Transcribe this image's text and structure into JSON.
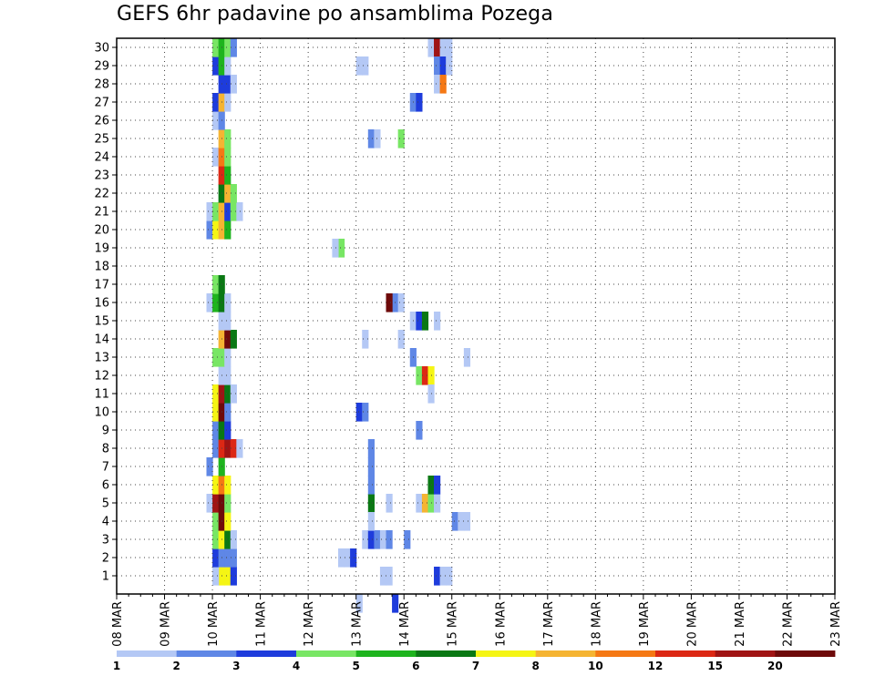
{
  "chart_data": {
    "type": "heatmap",
    "title": "GEFS 6hr padavine po ansamblima Pozega",
    "xlabel": "",
    "ylabel": "",
    "x_ticks": [
      "08 MAR",
      "09 MAR",
      "10 MAR",
      "11 MAR",
      "12 MAR",
      "13 MAR",
      "14 MAR",
      "15 MAR",
      "16 MAR",
      "17 MAR",
      "18 MAR",
      "19 MAR",
      "20 MAR",
      "21 MAR",
      "22 MAR",
      "23 MAR"
    ],
    "y_ticks": [
      "1",
      "2",
      "3",
      "4",
      "5",
      "6",
      "7",
      "8",
      "9",
      "10",
      "11",
      "12",
      "13",
      "14",
      "15",
      "16",
      "17",
      "18",
      "19",
      "20",
      "21",
      "22",
      "23",
      "24",
      "25",
      "26",
      "27",
      "28",
      "29",
      "30"
    ],
    "x_range": [
      0,
      60
    ],
    "y_range": [
      0,
      30.5
    ],
    "grid": true,
    "colorbar": {
      "levels": [
        "1",
        "2",
        "3",
        "4",
        "5",
        "6",
        "7",
        "8",
        "10",
        "12",
        "15",
        "20"
      ],
      "colors": [
        "#b4c8f5",
        "#5f87e6",
        "#1e3cdc",
        "#78e664",
        "#1eb41e",
        "#0a7814",
        "#f5f514",
        "#f5b432",
        "#f57814",
        "#dc2814",
        "#a01414",
        "#6e0a0a"
      ],
      "placement": "bottom"
    },
    "cells": [
      [
        8.5,
        1,
        6
      ],
      [
        9,
        1,
        6
      ],
      [
        8,
        1,
        0
      ],
      [
        9.5,
        1,
        2
      ],
      [
        8,
        2,
        2
      ],
      [
        8.5,
        2,
        1
      ],
      [
        9,
        2,
        1
      ],
      [
        9.5,
        2,
        1
      ],
      [
        19,
        2,
        0
      ],
      [
        19.5,
        2,
        2
      ],
      [
        8,
        3,
        3
      ],
      [
        8.5,
        3,
        6
      ],
      [
        9,
        3,
        5
      ],
      [
        9.5,
        3,
        0
      ],
      [
        8,
        4,
        3
      ],
      [
        8.5,
        4,
        11
      ],
      [
        9,
        4,
        6
      ],
      [
        7.5,
        5,
        0
      ],
      [
        8,
        5,
        10
      ],
      [
        8.5,
        5,
        11
      ],
      [
        9,
        5,
        3
      ],
      [
        8,
        6,
        6
      ],
      [
        8.5,
        6,
        8
      ],
      [
        9,
        6,
        6
      ],
      [
        7.5,
        7,
        1
      ],
      [
        8.5,
        7,
        4
      ],
      [
        8,
        8,
        1
      ],
      [
        8.5,
        8,
        9
      ],
      [
        9,
        8,
        10
      ],
      [
        9.5,
        8,
        9
      ],
      [
        10,
        8,
        0
      ],
      [
        8,
        9,
        1
      ],
      [
        8.5,
        9,
        5
      ],
      [
        9,
        9,
        2
      ],
      [
        8,
        10,
        6
      ],
      [
        8.5,
        10,
        11
      ],
      [
        9,
        10,
        1
      ],
      [
        8,
        11,
        6
      ],
      [
        8.5,
        11,
        10
      ],
      [
        9,
        11,
        5
      ],
      [
        9.5,
        11,
        0
      ],
      [
        8.5,
        12,
        0
      ],
      [
        9,
        12,
        0
      ],
      [
        8,
        13,
        3
      ],
      [
        8.5,
        13,
        3
      ],
      [
        9,
        13,
        0
      ],
      [
        8.5,
        14,
        7
      ],
      [
        9,
        14,
        11
      ],
      [
        9.5,
        14,
        5
      ],
      [
        8.5,
        15,
        0
      ],
      [
        9,
        15,
        0
      ],
      [
        7.5,
        16,
        0
      ],
      [
        8,
        16,
        4
      ],
      [
        8.5,
        16,
        5
      ],
      [
        9,
        16,
        0
      ],
      [
        8,
        17,
        3
      ],
      [
        8.5,
        17,
        5
      ],
      [
        7.5,
        20,
        1
      ],
      [
        8,
        20,
        6
      ],
      [
        8.5,
        20,
        7
      ],
      [
        9,
        20,
        4
      ],
      [
        7.5,
        21,
        0
      ],
      [
        8,
        21,
        3
      ],
      [
        8.5,
        21,
        7
      ],
      [
        9,
        21,
        2
      ],
      [
        9.5,
        21,
        3
      ],
      [
        10,
        21,
        0
      ],
      [
        8.5,
        22,
        5
      ],
      [
        9,
        22,
        7
      ],
      [
        9.5,
        22,
        3
      ],
      [
        8.5,
        23,
        9
      ],
      [
        9,
        23,
        4
      ],
      [
        8,
        24,
        0
      ],
      [
        8.5,
        24,
        8
      ],
      [
        9,
        24,
        3
      ],
      [
        8.5,
        25,
        7
      ],
      [
        9,
        25,
        3
      ],
      [
        8,
        26,
        0
      ],
      [
        8.5,
        26,
        1
      ],
      [
        8,
        27,
        2
      ],
      [
        8.5,
        27,
        7
      ],
      [
        9,
        27,
        0
      ],
      [
        8.5,
        28,
        2
      ],
      [
        9,
        28,
        2
      ],
      [
        9.5,
        28,
        0
      ],
      [
        8,
        29,
        2
      ],
      [
        8.5,
        29,
        4
      ],
      [
        9,
        29,
        0
      ],
      [
        8,
        30,
        3
      ],
      [
        8.5,
        30,
        4
      ],
      [
        9,
        30,
        3
      ],
      [
        9.5,
        30,
        1
      ],
      [
        18.5,
        19,
        3
      ],
      [
        20.5,
        3,
        0
      ],
      [
        21,
        3,
        2
      ],
      [
        21.5,
        3,
        1
      ],
      [
        22,
        3,
        0
      ],
      [
        22.5,
        3,
        1
      ],
      [
        24,
        3,
        1
      ],
      [
        21,
        5,
        5
      ],
      [
        22.5,
        5,
        0
      ],
      [
        25,
        5,
        0
      ],
      [
        25.5,
        5,
        7
      ],
      [
        26,
        5,
        3
      ],
      [
        26.5,
        5,
        0
      ],
      [
        21,
        4,
        0
      ],
      [
        21,
        8,
        1
      ],
      [
        21,
        6,
        1
      ],
      [
        21,
        7,
        1
      ],
      [
        20,
        10,
        2
      ],
      [
        20.5,
        10,
        1
      ],
      [
        20,
        -0.5,
        0
      ],
      [
        20.5,
        14,
        0
      ],
      [
        23,
        16,
        1
      ],
      [
        23.5,
        16,
        0
      ],
      [
        22.5,
        16,
        11
      ],
      [
        23.5,
        14,
        0
      ],
      [
        24.5,
        15,
        0
      ],
      [
        25,
        15,
        2
      ],
      [
        25.5,
        15,
        5
      ],
      [
        26.5,
        15,
        0
      ],
      [
        21,
        25,
        1
      ],
      [
        21.5,
        25,
        0
      ],
      [
        23.5,
        25,
        3
      ],
      [
        24.5,
        27,
        1
      ],
      [
        25,
        27,
        2
      ],
      [
        22,
        1,
        0
      ],
      [
        22.5,
        1,
        0
      ],
      [
        23,
        -0.5,
        2
      ],
      [
        25,
        12,
        3
      ],
      [
        25.5,
        12,
        9
      ],
      [
        26,
        12,
        6
      ],
      [
        26,
        11,
        0
      ],
      [
        24.5,
        13,
        1
      ],
      [
        25,
        9,
        1
      ],
      [
        20.5,
        29,
        0
      ],
      [
        20,
        29,
        0
      ],
      [
        26,
        6,
        5
      ],
      [
        26.5,
        6,
        2
      ],
      [
        26.5,
        1,
        2
      ],
      [
        27,
        1,
        0
      ],
      [
        27.5,
        1,
        0
      ],
      [
        26,
        30,
        0
      ],
      [
        26.5,
        30,
        10
      ],
      [
        27,
        30,
        0
      ],
      [
        27.5,
        30,
        0
      ],
      [
        26.5,
        29,
        1
      ],
      [
        27,
        29,
        2
      ],
      [
        27.5,
        29,
        0
      ],
      [
        26.5,
        28,
        0
      ],
      [
        27,
        28,
        8
      ],
      [
        28,
        4,
        1
      ],
      [
        28.5,
        4,
        0
      ],
      [
        29,
        4,
        0
      ],
      [
        29,
        13,
        0
      ],
      [
        18,
        19,
        0
      ],
      [
        18.5,
        2,
        0
      ]
    ]
  }
}
